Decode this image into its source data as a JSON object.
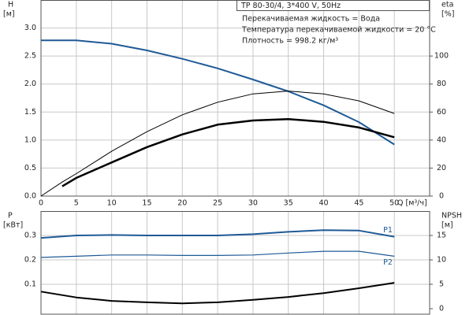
{
  "chart_data": [
    {
      "type": "line",
      "box_title": "TP 80-30/4, 3*400 V, 50Hz",
      "annotations": [
        "Перекачиваемая жидкость = Вода",
        "Температура перекачиваемой жидкости = 20 °C",
        "Плотность = 998.2 кг/м³"
      ],
      "ylabel": "H",
      "yunit": "[м]",
      "y2label": "eta",
      "y2unit": "[%]",
      "xlabel": "Q [м³/ч]",
      "x": [
        0,
        3,
        5,
        10,
        15,
        20,
        25,
        30,
        35,
        40,
        45,
        50
      ],
      "xlim": [
        0,
        55
      ],
      "xticks": [
        0,
        5,
        10,
        15,
        20,
        25,
        30,
        35,
        40,
        45,
        50
      ],
      "ylim": [
        0,
        3.5
      ],
      "yticks": [
        {
          "value": 0,
          "label": "0.0"
        },
        {
          "value": 0.5,
          "label": "0.5"
        },
        {
          "value": 1,
          "label": "1.0"
        },
        {
          "value": 1.5,
          "label": "1.5"
        },
        {
          "value": 2,
          "label": "2.0"
        },
        {
          "value": 2.5,
          "label": "2.5"
        },
        {
          "value": 3,
          "label": "3.0"
        }
      ],
      "y2lim": [
        0,
        140
      ],
      "y2ticks": [
        0,
        20,
        40,
        60,
        80,
        100
      ],
      "grid": true,
      "series": [
        {
          "color": "#1f5a96",
          "width": 2,
          "values": [
            2.78,
            2.78,
            2.78,
            2.72,
            2.6,
            2.45,
            2.28,
            2.08,
            1.87,
            1.62,
            1.32,
            0.92
          ]
        },
        {
          "color": "#000000",
          "width": 1,
          "axis": "y2",
          "values": [
            0,
            10,
            16,
            32,
            46,
            58,
            67,
            73,
            75,
            73,
            68,
            59
          ]
        },
        {
          "color": "#000000",
          "width": 2.5,
          "axis": "y2",
          "values": [
            null,
            7,
            13,
            24,
            35,
            44,
            51,
            54,
            55,
            53,
            49,
            42
          ]
        }
      ]
    },
    {
      "type": "line",
      "ylabel": "P",
      "yunit": "[кВт]",
      "y2label": "NPSH",
      "y2unit": "[м]",
      "x": [
        0,
        5,
        10,
        15,
        20,
        25,
        30,
        35,
        40,
        45,
        50
      ],
      "xlim": [
        0,
        55
      ],
      "xticks": [
        0,
        5,
        10,
        15,
        20,
        25,
        30,
        35,
        40,
        45,
        50
      ],
      "ylim": [
        0,
        0.4
      ],
      "yticks": [
        0.1,
        0.2,
        0.3
      ],
      "y2lim": [
        0,
        20
      ],
      "y2ticks": [
        0,
        5,
        10,
        15
      ],
      "grid": true,
      "series": [
        {
          "name": "P1",
          "color": "#1f5a96",
          "width": 2,
          "values": [
            0.29,
            0.3,
            0.302,
            0.3,
            0.3,
            0.3,
            0.305,
            0.315,
            0.322,
            0.32,
            0.295
          ]
        },
        {
          "name": "P2",
          "color": "#1f5a96",
          "width": 1.2,
          "values": [
            0.21,
            0.215,
            0.22,
            0.22,
            0.218,
            0.218,
            0.22,
            0.228,
            0.235,
            0.235,
            0.215
          ]
        },
        {
          "color": "#000000",
          "width": 2,
          "axis": "y2",
          "values": [
            3.5,
            2.3,
            1.6,
            1.3,
            1.1,
            1.3,
            1.8,
            2.4,
            3.2,
            4.2,
            5.3
          ]
        }
      ]
    }
  ]
}
